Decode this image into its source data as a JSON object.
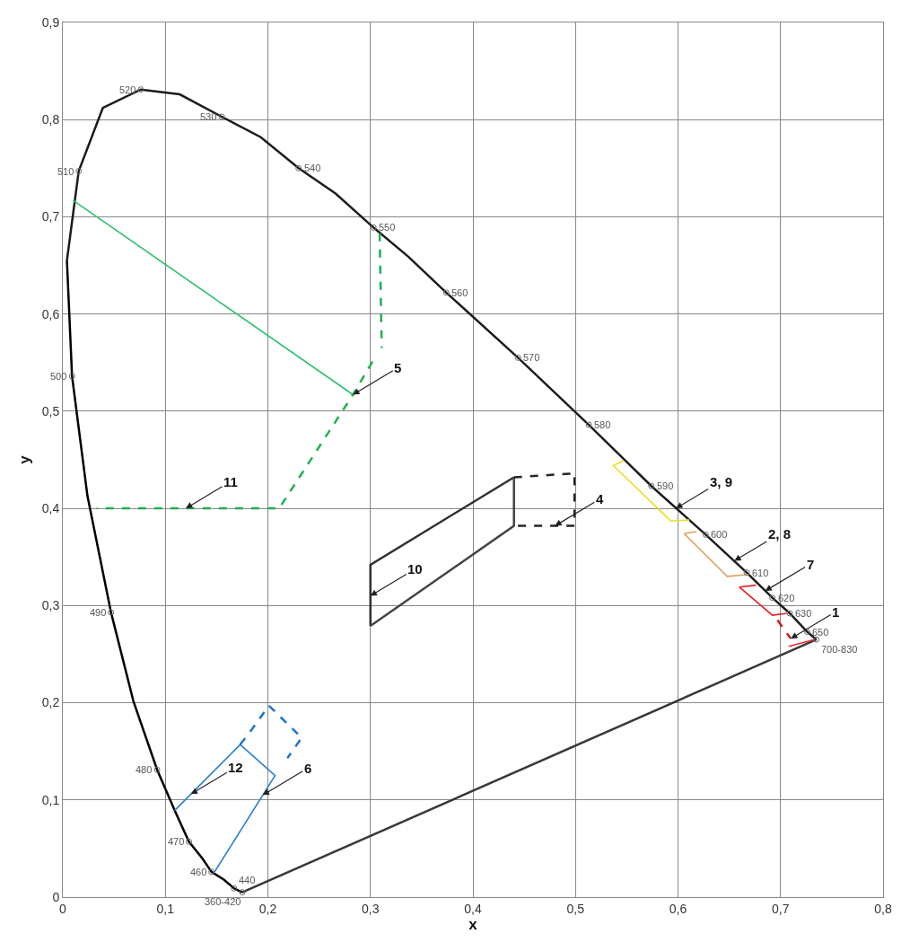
{
  "chart_data": {
    "type": "line",
    "xlabel": "x",
    "ylabel": "y",
    "xlim": [
      0,
      0.8
    ],
    "ylim": [
      0,
      0.9
    ],
    "xticks": [
      0,
      {
        "value": 0.1,
        "label": "0,1"
      },
      {
        "value": 0.2,
        "label": "0,2"
      },
      {
        "value": 0.3,
        "label": "0,3"
      },
      {
        "value": 0.4,
        "label": "0,4"
      },
      {
        "value": 0.5,
        "label": "0,5"
      },
      {
        "value": 0.6,
        "label": "0,6"
      },
      {
        "value": 0.7,
        "label": "0,7"
      },
      {
        "value": 0.8,
        "label": "0,8"
      }
    ],
    "yticks": [
      0,
      {
        "value": 0.1,
        "label": "0,1"
      },
      {
        "value": 0.2,
        "label": "0,2"
      },
      {
        "value": 0.3,
        "label": "0,3"
      },
      {
        "value": 0.4,
        "label": "0,4"
      },
      {
        "value": 0.5,
        "label": "0,5"
      },
      {
        "value": 0.6,
        "label": "0,6"
      },
      {
        "value": 0.7,
        "label": "0,7"
      },
      {
        "value": 0.8,
        "label": "0,8"
      },
      {
        "value": 0.9,
        "label": "0,9"
      }
    ],
    "grid": true,
    "series": [
      {
        "color": "#000000",
        "line_style": "solid",
        "x": [
          0.175,
          0.167,
          0.157,
          0.145,
          0.136,
          0.123,
          0.11,
          0.092,
          0.069,
          0.047,
          0.024,
          0.009,
          0.004
        ],
        "values": [
          0.005,
          0.009,
          0.018,
          0.026,
          0.04,
          0.057,
          0.087,
          0.131,
          0.201,
          0.293,
          0.413,
          0.536,
          0.655
        ]
      },
      {
        "color": "#1c1c1c",
        "line_style": "solid",
        "x": [
          0.004,
          0.0155,
          0.039,
          0.076,
          0.114,
          0.155,
          0.193,
          0.23,
          0.266,
          0.303,
          0.337,
          0.374,
          0.444,
          0.513,
          0.574,
          0.627,
          0.667,
          0.692,
          0.709,
          0.726,
          0.735
        ],
        "values": [
          0.655,
          0.747,
          0.812,
          0.831,
          0.826,
          0.803,
          0.782,
          0.75,
          0.724,
          0.689,
          0.659,
          0.622,
          0.555,
          0.486,
          0.423,
          0.373,
          0.334,
          0.308,
          0.292,
          0.273,
          0.265
        ]
      },
      {
        "color": "#383838",
        "line_style": "solid",
        "x": [
          0.175,
          0.735
        ],
        "values": [
          0.005,
          0.265
        ]
      },
      {
        "type": "scatter",
        "color": "#6a6a6a",
        "marker": "circle",
        "x": [
          0.175,
          0.167,
          0.145,
          0.123,
          0.092,
          0.047,
          0.009,
          0.0155,
          0.076,
          0.155,
          0.23,
          0.303,
          0.374,
          0.444,
          0.513,
          0.574,
          0.627,
          0.667,
          0.692,
          0.709,
          0.726,
          0.735
        ],
        "values": [
          0.005,
          0.009,
          0.026,
          0.057,
          0.131,
          0.293,
          0.536,
          0.747,
          0.831,
          0.803,
          0.75,
          0.689,
          0.622,
          0.555,
          0.486,
          0.423,
          0.373,
          0.334,
          0.308,
          0.292,
          0.273,
          0.265
        ]
      },
      {
        "color": "#30c070",
        "line_style": "solid",
        "x": [
          0.01,
          0.283
        ],
        "values": [
          0.717,
          0.517
        ]
      },
      {
        "color": "#20b050",
        "line_style": "dashed",
        "x": [
          0.309,
          0.311,
          0.306,
          0.302,
          0.283,
          0.211,
          0.033
        ],
        "values": [
          0.683,
          0.565,
          null,
          0.551,
          0.517,
          0.4,
          0.4
        ]
      },
      {
        "color": "#303030",
        "line_style": "solid",
        "x": [
          0.3,
          0.3,
          0.44
        ],
        "values": [
          0.279,
          0.342,
          0.432
        ]
      },
      {
        "color": "#444444",
        "line_style": "solid",
        "x": [
          0.3,
          0.44,
          0.44
        ],
        "values": [
          0.279,
          0.382,
          0.432
        ]
      },
      {
        "color": "#262626",
        "line_style": "dashed",
        "x": [
          0.44,
          0.499,
          0.499,
          0.44
        ],
        "values": [
          0.432,
          0.436,
          0.382,
          0.382
        ]
      },
      {
        "color": "#2a7fd0",
        "line_style": "solid",
        "x": [
          0.109,
          0.173,
          0.207,
          0.148
        ],
        "values": [
          0.089,
          0.157,
          0.125,
          0.026
        ]
      },
      {
        "color": "#1f74c8",
        "line_style": "dashed",
        "x": [
          0.173,
          0.184,
          0.201,
          0.233,
          0.219
        ],
        "values": [
          0.157,
          0.172,
          0.197,
          0.164,
          0.143
        ]
      },
      {
        "color": "#e8e020",
        "line_style": "solid",
        "x": [
          0.547,
          0.537,
          0.593,
          0.611
        ],
        "values": [
          0.449,
          0.444,
          0.387,
          0.388
        ]
      },
      {
        "color": "#e0a060",
        "line_style": "solid",
        "x": [
          0.618,
          0.606,
          0.648,
          0.669
        ],
        "values": [
          0.376,
          0.374,
          0.33,
          0.332
        ]
      },
      {
        "color": "#e02020",
        "line_style": "solid",
        "x": [
          0.676,
          0.66,
          0.692,
          0.706
        ],
        "values": [
          0.321,
          0.319,
          0.29,
          0.292
        ]
      },
      {
        "color": "#d81818",
        "line_style": "dashed",
        "x": [
          0.697,
          0.71
        ],
        "values": [
          0.285,
          0.266
        ]
      },
      {
        "color": "#e82828",
        "line_style": "solid",
        "x": [
          0.708,
          0.733
        ],
        "values": [
          0.258,
          0.265
        ]
      }
    ],
    "annotations": [
      {
        "text": "360-420",
        "x": 0.175,
        "y": 0.005
      },
      {
        "text": "440",
        "x": 0.167,
        "y": 0.009
      },
      {
        "text": "460",
        "x": 0.145,
        "y": 0.026
      },
      {
        "text": "470",
        "x": 0.123,
        "y": 0.057
      },
      {
        "text": "480",
        "x": 0.092,
        "y": 0.131
      },
      {
        "text": "490",
        "x": 0.047,
        "y": 0.293
      },
      {
        "text": "500",
        "x": 0.009,
        "y": 0.536
      },
      {
        "text": "510",
        "x": 0.0155,
        "y": 0.747
      },
      {
        "text": "520",
        "x": 0.076,
        "y": 0.831
      },
      {
        "text": "530",
        "x": 0.155,
        "y": 0.803
      },
      {
        "text": "540",
        "x": 0.23,
        "y": 0.75
      },
      {
        "text": "550",
        "x": 0.303,
        "y": 0.689
      },
      {
        "text": "560",
        "x": 0.374,
        "y": 0.622
      },
      {
        "text": "570",
        "x": 0.444,
        "y": 0.555
      },
      {
        "text": "580",
        "x": 0.513,
        "y": 0.486
      },
      {
        "text": "590",
        "x": 0.574,
        "y": 0.423
      },
      {
        "text": "600",
        "x": 0.627,
        "y": 0.373
      },
      {
        "text": "610",
        "x": 0.667,
        "y": 0.334
      },
      {
        "text": "620",
        "x": 0.692,
        "y": 0.308
      },
      {
        "text": "630",
        "x": 0.709,
        "y": 0.292
      },
      {
        "text": "650",
        "x": 0.726,
        "y": 0.273
      },
      {
        "text": "700-830",
        "x": 0.735,
        "y": 0.265
      },
      {
        "text": "1",
        "x": 0.71,
        "y": 0.266
      },
      {
        "text": "2, 8",
        "x": 0.655,
        "y": 0.346
      },
      {
        "text": "3, 9",
        "x": 0.598,
        "y": 0.4
      },
      {
        "text": "4",
        "x": 0.48,
        "y": 0.382
      },
      {
        "text": "5",
        "x": 0.283,
        "y": 0.517
      },
      {
        "text": "6",
        "x": 0.195,
        "y": 0.105
      },
      {
        "text": "7",
        "x": 0.685,
        "y": 0.315
      },
      {
        "text": "10",
        "x": 0.3,
        "y": 0.31
      },
      {
        "text": "11",
        "x": 0.12,
        "y": 0.4
      },
      {
        "text": "12",
        "x": 0.125,
        "y": 0.106
      }
    ]
  }
}
